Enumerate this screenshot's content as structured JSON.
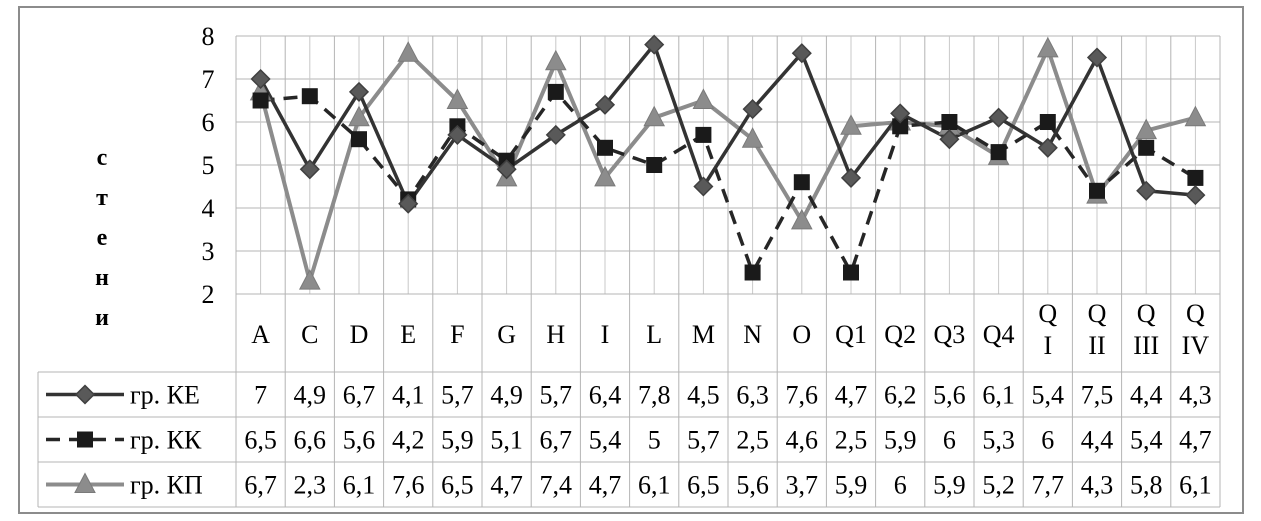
{
  "chart_data": {
    "type": "line",
    "ylabel": "стени",
    "ylim": [
      2,
      8
    ],
    "yticks": [
      "2",
      "3",
      "4",
      "5",
      "6",
      "7",
      "8"
    ],
    "grid": true,
    "categories": [
      "A",
      "C",
      "D",
      "E",
      "F",
      "G",
      "H",
      "I",
      "L",
      "M",
      "N",
      "O",
      "Q1",
      "Q2",
      "Q3",
      "Q4",
      "Q I",
      "Q II",
      "Q III",
      "Q IV"
    ],
    "series": [
      {
        "name": "гр. КЕ",
        "values": [
          7,
          4.9,
          6.7,
          4.1,
          5.7,
          4.9,
          5.7,
          6.4,
          7.8,
          4.5,
          6.3,
          7.6,
          4.7,
          6.2,
          5.6,
          6.1,
          5.4,
          7.5,
          4.4,
          4.3
        ],
        "labels": [
          "7",
          "4,9",
          "6,7",
          "4,1",
          "5,7",
          "4,9",
          "5,7",
          "6,4",
          "7,8",
          "4,5",
          "6,3",
          "7,6",
          "4,7",
          "6,2",
          "5,6",
          "6,1",
          "5,4",
          "7,5",
          "4,4",
          "4,3"
        ],
        "color": "#333333",
        "dash": "none",
        "marker": "diamond"
      },
      {
        "name": "гр. КК",
        "values": [
          6.5,
          6.6,
          5.6,
          4.2,
          5.9,
          5.1,
          6.7,
          5.4,
          5,
          5.7,
          2.5,
          4.6,
          2.5,
          5.9,
          6,
          5.3,
          6,
          4.4,
          5.4,
          4.7
        ],
        "labels": [
          "6,5",
          "6,6",
          "5,6",
          "4,2",
          "5,9",
          "5,1",
          "6,7",
          "5,4",
          "5",
          "5,7",
          "2,5",
          "4,6",
          "2,5",
          "5,9",
          "6",
          "5,3",
          "6",
          "4,4",
          "5,4",
          "4,7"
        ],
        "color": "#262626",
        "dash": "14,9",
        "marker": "square"
      },
      {
        "name": "гр. КП",
        "values": [
          6.7,
          2.3,
          6.1,
          7.6,
          6.5,
          4.7,
          7.4,
          4.7,
          6.1,
          6.5,
          5.6,
          3.7,
          5.9,
          6,
          5.9,
          5.2,
          7.7,
          4.3,
          5.8,
          6.1
        ],
        "labels": [
          "6,7",
          "2,3",
          "6,1",
          "7,6",
          "6,5",
          "4,7",
          "7,4",
          "4,7",
          "6,1",
          "6,5",
          "5,6",
          "3,7",
          "5,9",
          "6",
          "5,9",
          "5,2",
          "7,7",
          "4,3",
          "5,8",
          "6,1"
        ],
        "color": "#8c8c8c",
        "dash": "none",
        "marker": "triangle"
      }
    ]
  }
}
